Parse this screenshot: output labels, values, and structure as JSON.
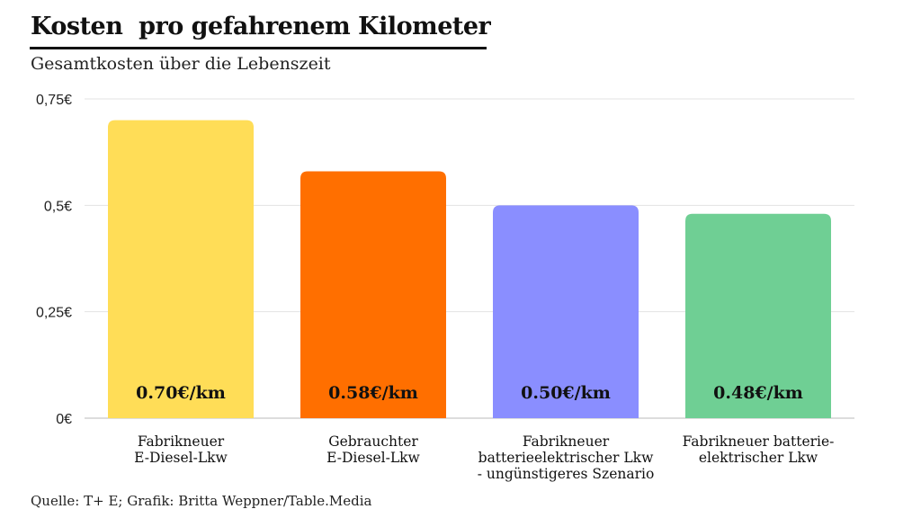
{
  "header": {
    "title": "Kosten  pro gefahrenem Kilometer",
    "subtitle": "Gesamtkosten über die Lebenszeit"
  },
  "footer": {
    "source": "Quelle: T+ E; Grafik: Britta Weppner/Table.Media"
  },
  "chart_data": {
    "type": "bar",
    "categories": [
      [
        "Fabrikneuer",
        "E-Diesel-Lkw"
      ],
      [
        "Gebrauchter",
        "E-Diesel-Lkw"
      ],
      [
        "Fabrikneuer",
        "batterieelektrischer Lkw",
        "- ungünstigeres Szenario"
      ],
      [
        "Fabrikneuer batterie-",
        "elektrischer Lkw"
      ]
    ],
    "values": [
      0.7,
      0.58,
      0.5,
      0.48
    ],
    "value_labels": [
      "0.70€/km",
      "0.58€/km",
      "0.50€/km",
      "0.48€/km"
    ],
    "colors": [
      "#FFDD57",
      "#FF6F00",
      "#8A8EFF",
      "#6FCF94"
    ],
    "ylim": [
      0,
      0.75
    ],
    "yticks": [
      0,
      0.25,
      0.5,
      0.75
    ],
    "ytick_labels": [
      "0€",
      "0,25€",
      "0,5€",
      "0,75€"
    ],
    "grid": true,
    "legend": false
  }
}
